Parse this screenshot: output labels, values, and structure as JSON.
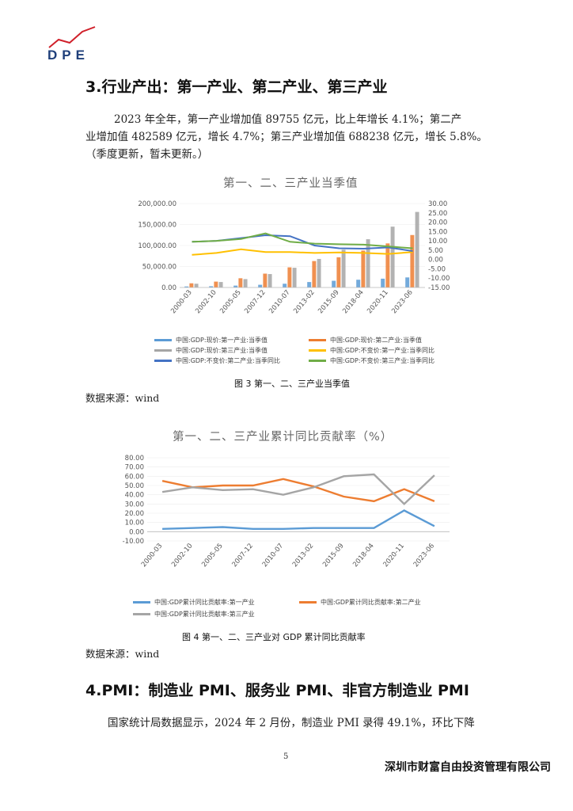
{
  "logo": {
    "text": "DPE"
  },
  "section3": {
    "heading": "3.行业产出：第一产业、第二产业、第三产业",
    "paragraph_lines": [
      "2023 年全年，第一产业增加值 89755 亿元，比上年增长 4.1%；第二产",
      "业增加值 482589 亿元，增长 4.7%；第三产业增加值 688238 亿元，增长 5.8%。",
      "（季度更新，暂未更新。）"
    ]
  },
  "figure3": {
    "caption": "图 3 第一、二、三产业当季值",
    "source": "数据来源：wind"
  },
  "figure4": {
    "caption": "图 4 第一、二、三产业对 GDP 累计同比贡献率",
    "source": "数据来源：wind"
  },
  "section4": {
    "heading": "4.PMI：制造业 PMI、服务业 PMI、非官方制造业 PMI",
    "paragraph": "国家统计局数据显示，2024 年 2 月份，制造业 PMI 录得 49.1%，环比下降"
  },
  "footer": {
    "page_number": "5",
    "company": "深圳市财富自由投资管理有限公司"
  },
  "chart_data": [
    {
      "type": "bar",
      "title": "第一、二、三产业当季值",
      "categories": [
        "2000-03",
        "2002-10",
        "2005-05",
        "2007-12",
        "2010-07",
        "2013-02",
        "2015-09",
        "2018-04",
        "2020-11",
        "2023-06"
      ],
      "y_left": {
        "ticks": [
          "0.00",
          "50,000.00",
          "100,000.00",
          "150,000.00",
          "200,000.00"
        ],
        "range": [
          0,
          200000
        ]
      },
      "y_right": {
        "ticks": [
          "-15.00",
          "-10.00",
          "-5.00",
          "0.00",
          "5.00",
          "10.00",
          "15.00",
          "20.00",
          "25.00",
          "30.00"
        ],
        "range": [
          -15,
          30
        ]
      },
      "legend": [
        {
          "name": "中国:GDP:现价:第一产业:当季值",
          "color": "#5b9bd5",
          "kind": "bar"
        },
        {
          "name": "中国:GDP:现价:第二产业:当季值",
          "color": "#ed7d31",
          "kind": "bar"
        },
        {
          "name": "中国:GDP:现价:第三产业:当季值",
          "color": "#a5a5a5",
          "kind": "bar"
        },
        {
          "name": "中国:GDP:不变价:第一产业:当季同比",
          "color": "#ffc000",
          "kind": "line"
        },
        {
          "name": "中国:GDP:不变价:第二产业:当季同比",
          "color": "#4472c4",
          "kind": "line"
        },
        {
          "name": "中国:GDP:不变价:第三产业:当季同比",
          "color": "#70ad47",
          "kind": "line"
        }
      ],
      "series": [
        {
          "name": "中国:GDP:现价:第一产业:当季值",
          "values": [
            2500,
            3000,
            4500,
            6500,
            9000,
            13000,
            16000,
            18500,
            21000,
            24000
          ]
        },
        {
          "name": "中国:GDP:现价:第二产业:当季值",
          "values": [
            10000,
            14000,
            22000,
            33000,
            48000,
            63000,
            72000,
            88000,
            105000,
            125000
          ]
        },
        {
          "name": "中国:GDP:现价:第三产业:当季值",
          "values": [
            9000,
            13000,
            20000,
            32000,
            47000,
            68000,
            90000,
            115000,
            145000,
            180000
          ]
        },
        {
          "name": "中国:GDP:不变价:第一产业:当季同比",
          "values": [
            2.5,
            3.5,
            5.5,
            4.0,
            4.0,
            3.5,
            3.8,
            3.5,
            3.0,
            4.0
          ]
        },
        {
          "name": "中国:GDP:不变价:第二产业:当季同比",
          "values": [
            9.5,
            10.0,
            11.5,
            13.0,
            12.5,
            7.5,
            6.0,
            5.8,
            6.5,
            4.5
          ]
        },
        {
          "name": "中国:GDP:不变价:第三产业:当季同比",
          "values": [
            9.5,
            10.0,
            11.0,
            14.0,
            9.5,
            8.5,
            8.2,
            8.0,
            7.0,
            6.0
          ]
        }
      ]
    },
    {
      "type": "line",
      "title": "第一、二、三产业累计同比贡献率（%）",
      "categories": [
        "2000-03",
        "2002-10",
        "2005-05",
        "2007-12",
        "2010-07",
        "2013-02",
        "2015-09",
        "2018-04",
        "2020-11",
        "2023-06"
      ],
      "y": {
        "ticks": [
          "-10.00",
          "0.00",
          "10.00",
          "20.00",
          "30.00",
          "40.00",
          "50.00",
          "60.00",
          "70.00",
          "80.00"
        ],
        "range": [
          -10,
          80
        ]
      },
      "legend": [
        {
          "name": "中国:GDP累计同比贡献率:第一产业",
          "color": "#5b9bd5"
        },
        {
          "name": "中国:GDP累计同比贡献率:第二产业",
          "color": "#ed7d31"
        },
        {
          "name": "中国:GDP累计同比贡献率:第三产业",
          "color": "#a5a5a5"
        }
      ],
      "series": [
        {
          "name": "中国:GDP累计同比贡献率:第一产业",
          "values": [
            3,
            4,
            5,
            3,
            3,
            4,
            4,
            4,
            23,
            6
          ]
        },
        {
          "name": "中国:GDP累计同比贡献率:第二产业",
          "values": [
            55,
            48,
            50,
            50,
            57,
            49,
            38,
            33,
            46,
            33
          ]
        },
        {
          "name": "中国:GDP累计同比贡献率:第三产业",
          "values": [
            43,
            48,
            45,
            46,
            40,
            48,
            60,
            62,
            30,
            61
          ]
        }
      ]
    }
  ]
}
